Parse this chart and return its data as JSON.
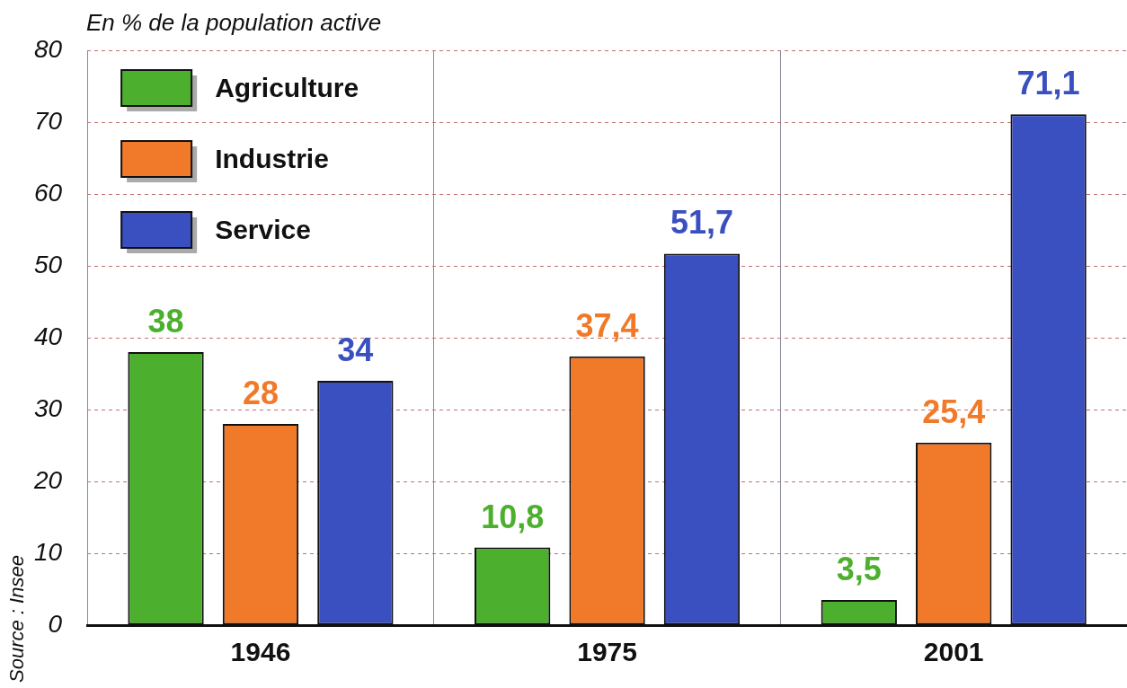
{
  "chart_data": {
    "type": "bar",
    "ylabel": "En % de la population active",
    "categories": [
      "1946",
      "1975",
      "2001"
    ],
    "series": [
      {
        "name": "Agriculture",
        "color": "#4caf2e",
        "values": [
          38,
          10.8,
          3.5
        ],
        "value_labels": [
          "38",
          "10,8",
          "3,5"
        ]
      },
      {
        "name": "Industrie",
        "color": "#f07a2a",
        "values": [
          28,
          37.4,
          25.4
        ],
        "value_labels": [
          "28",
          "37,4",
          "25,4"
        ]
      },
      {
        "name": "Service",
        "color": "#3a4fc0",
        "values": [
          34,
          51.7,
          71.1
        ],
        "value_labels": [
          "34",
          "51,7",
          "71,1"
        ]
      }
    ],
    "ylim": [
      0,
      80
    ],
    "yticks": [
      0,
      10,
      20,
      30,
      40,
      50,
      60,
      70,
      80
    ],
    "grid": true,
    "legend": "top left",
    "annotations": [
      "Source : Insee"
    ]
  }
}
